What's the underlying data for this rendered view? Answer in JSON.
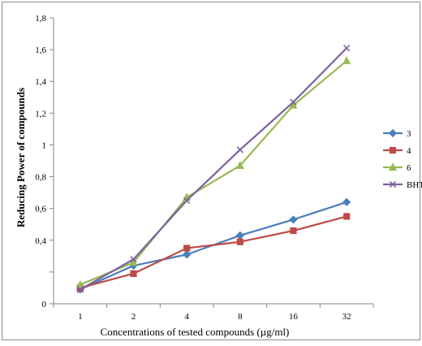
{
  "chart_data": {
    "type": "line",
    "title": "",
    "xlabel": "Concentrations of tested compounds (µg/ml)",
    "ylabel": "Reducing Power of compounds",
    "categories": [
      "1",
      "2",
      "4",
      "8",
      "16",
      "32"
    ],
    "y_ticks": [
      "0",
      "0,4",
      "0,6",
      "0,8",
      "1",
      "1,2",
      "1,4",
      "1,6",
      "1,8"
    ],
    "ylim": [
      0,
      1.8
    ],
    "grid": false,
    "legend_position": "right",
    "series": [
      {
        "name": "3",
        "color": "#4a7ebb",
        "marker": "diamond",
        "values": [
          0.09,
          0.24,
          0.31,
          0.43,
          0.53,
          0.64
        ]
      },
      {
        "name": "4",
        "color": "#be4b48",
        "marker": "square",
        "values": [
          0.1,
          0.19,
          0.35,
          0.39,
          0.46,
          0.55
        ]
      },
      {
        "name": "6",
        "color": "#98b954",
        "marker": "triangle",
        "values": [
          0.12,
          0.26,
          0.67,
          0.87,
          1.25,
          1.53
        ]
      },
      {
        "name": "BHT",
        "color": "#7d60a0",
        "marker": "x",
        "values": [
          0.09,
          0.28,
          0.65,
          0.97,
          1.27,
          1.61
        ]
      }
    ]
  }
}
